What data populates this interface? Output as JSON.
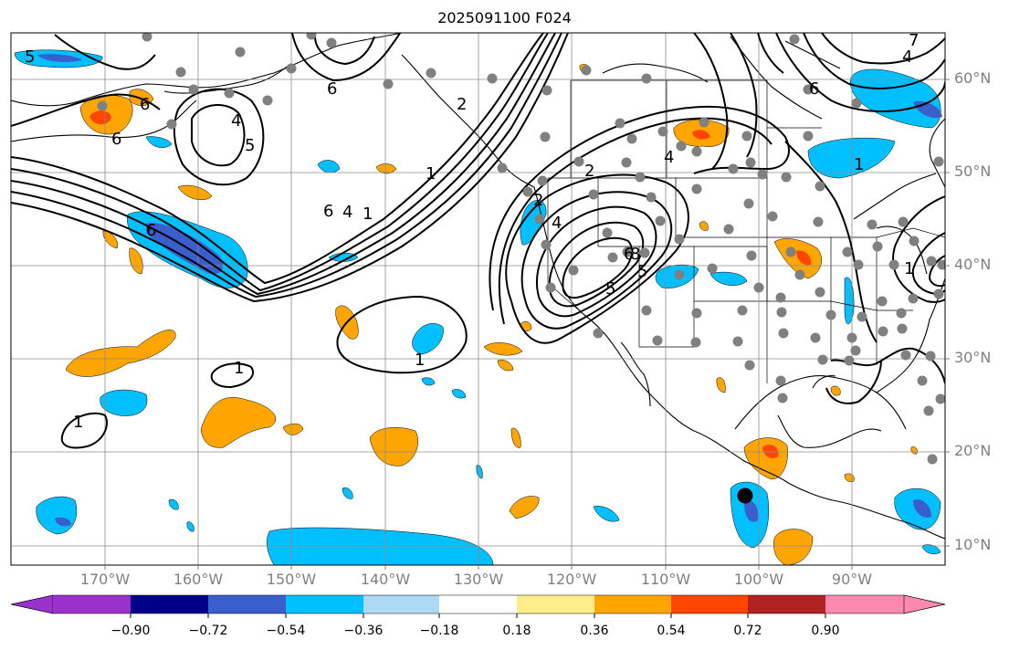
{
  "title": "2025091100 F024",
  "latitude_labels": [
    "60°N",
    "50°N",
    "40°N",
    "30°N",
    "20°N",
    "10°N"
  ],
  "longitude_labels": [
    "170°W",
    "160°W",
    "150°W",
    "140°W",
    "130°W",
    "120°W",
    "110°W",
    "100°W",
    "90°W"
  ],
  "contour_labels": [
    "5",
    "6",
    "6",
    "6",
    "5",
    "4",
    "1",
    "2",
    "2",
    "4",
    "6",
    "4",
    "1",
    "1",
    "1",
    "1",
    "2",
    "4",
    "6",
    "8",
    "5",
    "5",
    "4",
    "6",
    "1",
    "6",
    "7",
    "1"
  ],
  "colorbar": {
    "tick_labels": [
      "−0.90",
      "−0.72",
      "−0.54",
      "−0.36",
      "−0.18",
      "0.18",
      "0.36",
      "0.54",
      "0.72",
      "0.90"
    ],
    "colors": [
      "#9932cc",
      "#00008b",
      "#3a5fcd",
      "#00bfff",
      "#add8f6",
      "#ffffff",
      "#ffec8b",
      "#ffa500",
      "#ff4500",
      "#b22222",
      "#ff88b0"
    ]
  },
  "colors": {
    "grid": "#8c8c8c",
    "station_dots": "#808080",
    "coast": "#000000",
    "contour": "#000000",
    "ocean_bg": "#ffffff"
  }
}
